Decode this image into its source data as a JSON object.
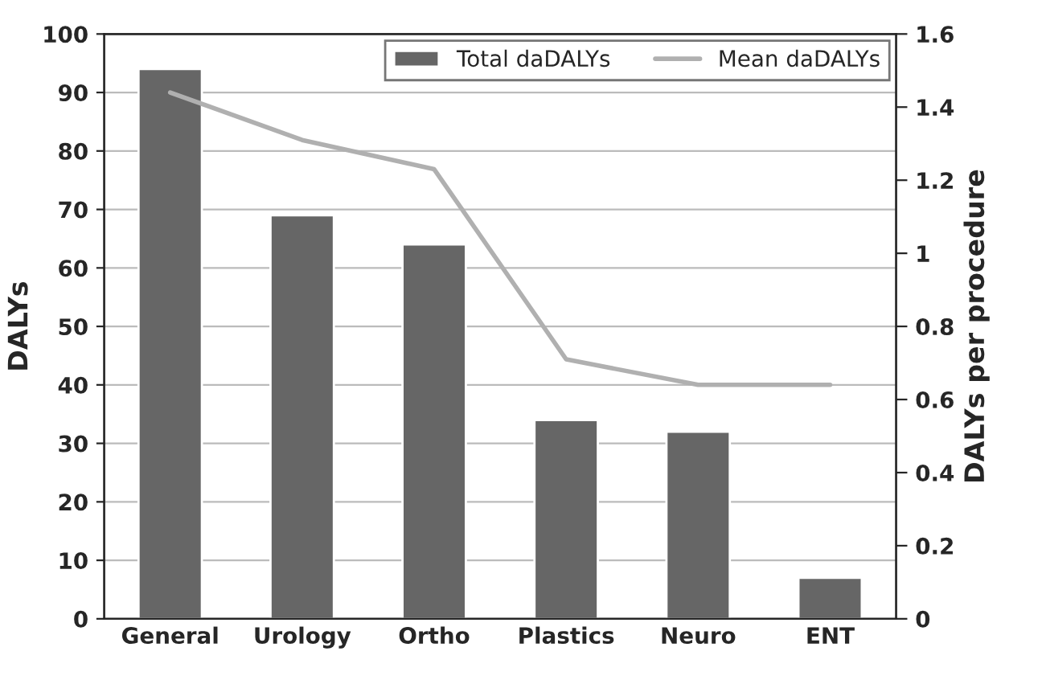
{
  "chart_data": {
    "type": "bar",
    "ylabel": "DALYs",
    "y2label": "DALYs per procedure",
    "categories": [
      "General",
      "Urology",
      "Ortho",
      "Plastics",
      "Neuro",
      "ENT"
    ],
    "series": [
      {
        "name": "Total daDALYs",
        "color": "#666666",
        "values": [
          94,
          69,
          64,
          34,
          32,
          7
        ]
      },
      {
        "name": "Mean daDALYs",
        "type": "line",
        "axis": "y2",
        "color": "#b0b0b0",
        "values": [
          1.44,
          1.31,
          1.23,
          0.71,
          0.64,
          0.64
        ]
      }
    ],
    "ylim": [
      0,
      100
    ],
    "yticks": [
      0,
      10,
      20,
      30,
      40,
      50,
      60,
      70,
      80,
      90,
      100
    ],
    "y2lim": [
      0,
      1.6
    ],
    "y2ticks": [
      0,
      0.2,
      0.4,
      0.6,
      0.8,
      1,
      1.2,
      1.4,
      1.6
    ],
    "grid": "y",
    "legend": "top right"
  }
}
